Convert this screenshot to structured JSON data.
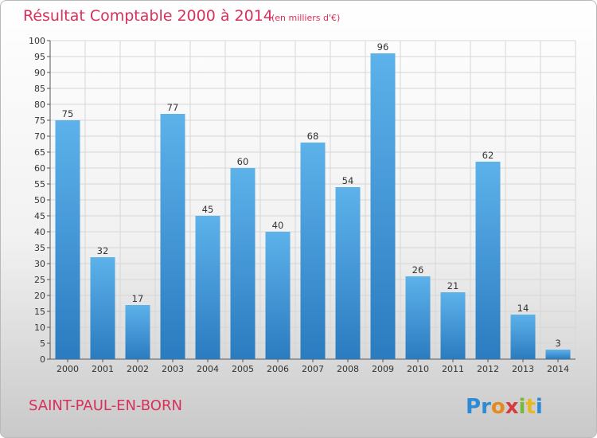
{
  "chart_data": {
    "type": "bar",
    "title": "Résultat Comptable 2000 à 2014",
    "subtitle": "(en milliers d'€)",
    "categories": [
      "2000",
      "2001",
      "2002",
      "2003",
      "2004",
      "2005",
      "2006",
      "2007",
      "2008",
      "2009",
      "2010",
      "2011",
      "2012",
      "2013",
      "2014"
    ],
    "values": [
      75,
      32,
      17,
      77,
      45,
      60,
      40,
      68,
      54,
      96,
      26,
      21,
      62,
      14,
      3
    ],
    "ylim": [
      0,
      100
    ],
    "ytick_step": 5,
    "grid": true,
    "bar_color_light": "#5db2ea",
    "bar_color_dark": "#2b7bc0"
  },
  "footer": {
    "commune": "SAINT-PAUL-EN-BORN",
    "logo_letters": [
      "P",
      "r",
      "o",
      "x",
      "i",
      "t",
      "i"
    ],
    "logo_colors": [
      "#2d8ad4",
      "#2d8ad4",
      "#e78a1e",
      "#d73c3c",
      "#79b83a",
      "#e7b91e",
      "#2d8ad4"
    ]
  }
}
